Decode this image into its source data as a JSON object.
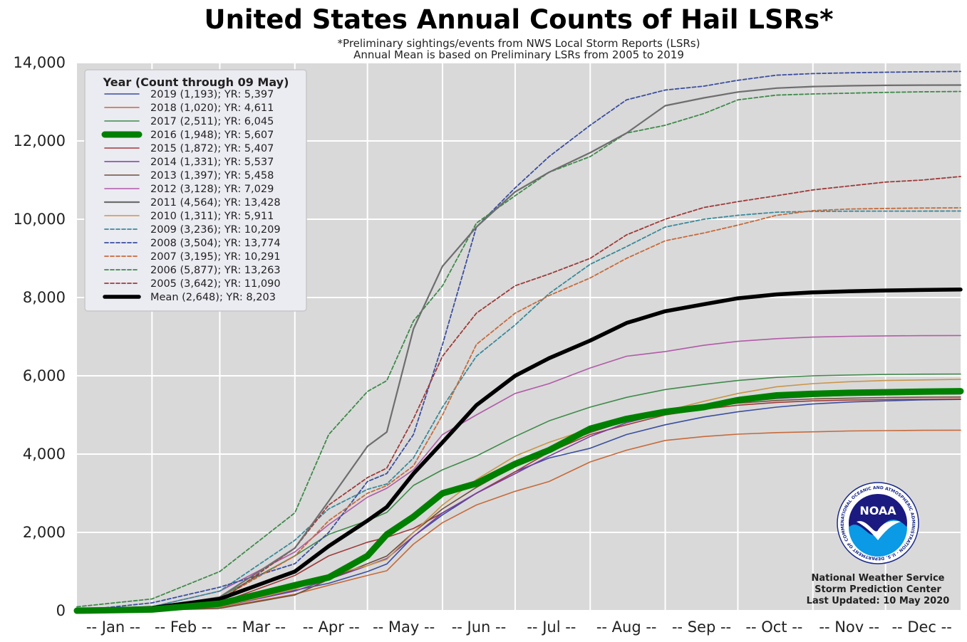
{
  "chart_data": {
    "type": "line",
    "title": "United States Annual Counts of Hail LSRs*",
    "subtitle_lines": [
      "*Preliminary sightings/events from NWS Local Storm Reports (LSRs)",
      "Annual Mean is based on Preliminary LSRs from 2005 to 2019"
    ],
    "xlabel": "",
    "ylabel": "",
    "x_unit": "day of year",
    "xlim": [
      1,
      366
    ],
    "ylim": [
      0,
      14000
    ],
    "yticks": [
      0,
      2000,
      4000,
      6000,
      8000,
      10000,
      12000,
      14000
    ],
    "ytick_labels": [
      "0",
      "2,000",
      "4,000",
      "6,000",
      "8,000",
      "10,000",
      "12,000",
      "14,000"
    ],
    "month_gridlines": [
      32,
      60,
      91,
      121,
      152,
      182,
      213,
      244,
      274,
      305,
      335
    ],
    "month_labels": [
      "-- Jan --",
      "-- Feb --",
      "-- Mar --",
      "-- Apr --",
      "-- May --",
      "-- Jun --",
      "-- Jul --",
      "-- Aug --",
      "-- Sep --",
      "-- Oct --",
      "-- Nov --",
      "-- Dec --"
    ],
    "month_label_days": [
      16,
      45,
      75,
      106,
      136,
      167,
      197,
      228,
      259,
      289,
      320,
      350
    ],
    "grid": true,
    "background": "#d9d9d9",
    "legend": {
      "title": "Year (Count through 09 May)",
      "placement": "top-left"
    },
    "series": [
      {
        "name": "2019 (1,193); YR: 5,397",
        "color": "#3b4ea0",
        "style": "solid",
        "width": 1.6,
        "x": [
          1,
          32,
          60,
          91,
          105,
          121,
          129,
          140,
          152,
          166,
          182,
          196,
          213,
          228,
          244,
          260,
          274,
          290,
          305,
          320,
          335,
          350,
          366
        ],
        "y": [
          0,
          20,
          120,
          520,
          700,
          1000,
          1193,
          1900,
          2450,
          3000,
          3550,
          3900,
          4150,
          4500,
          4750,
          4950,
          5080,
          5200,
          5280,
          5330,
          5360,
          5385,
          5397
        ]
      },
      {
        "name": "2018 (1,020); YR: 4,611",
        "color": "#c76a3b",
        "style": "solid",
        "width": 1.6,
        "x": [
          1,
          32,
          60,
          91,
          105,
          121,
          129,
          140,
          152,
          166,
          182,
          196,
          213,
          228,
          244,
          260,
          274,
          290,
          305,
          320,
          335,
          350,
          366
        ],
        "y": [
          0,
          10,
          80,
          420,
          650,
          900,
          1020,
          1700,
          2250,
          2700,
          3050,
          3300,
          3800,
          4100,
          4350,
          4450,
          4510,
          4550,
          4570,
          4590,
          4600,
          4608,
          4611
        ]
      },
      {
        "name": "2017 (2,511); YR: 6,045",
        "color": "#3f8a4a",
        "style": "solid",
        "width": 1.6,
        "x": [
          1,
          32,
          60,
          91,
          105,
          121,
          129,
          140,
          152,
          166,
          182,
          196,
          213,
          228,
          244,
          260,
          274,
          290,
          305,
          320,
          335,
          350,
          366
        ],
        "y": [
          0,
          60,
          350,
          1400,
          1950,
          2300,
          2511,
          3200,
          3600,
          3950,
          4450,
          4850,
          5200,
          5450,
          5650,
          5780,
          5880,
          5960,
          6000,
          6020,
          6035,
          6042,
          6045
        ]
      },
      {
        "name": "2016 (1,948); YR: 5,607",
        "color": "#008000",
        "style": "solid",
        "width": 9,
        "x": [
          1,
          32,
          60,
          91,
          105,
          121,
          129,
          140,
          152,
          166,
          182,
          196,
          213,
          228,
          244,
          260,
          274,
          290,
          305,
          320,
          335,
          350,
          366
        ],
        "y": [
          0,
          30,
          180,
          650,
          850,
          1400,
          1948,
          2400,
          3000,
          3250,
          3750,
          4100,
          4650,
          4900,
          5080,
          5200,
          5380,
          5500,
          5540,
          5565,
          5580,
          5595,
          5607
        ]
      },
      {
        "name": "2015 (1,872); YR: 5,407",
        "color": "#a03a3a",
        "style": "solid",
        "width": 1.6,
        "x": [
          1,
          32,
          60,
          91,
          105,
          121,
          129,
          140,
          152,
          166,
          182,
          196,
          213,
          228,
          244,
          260,
          274,
          290,
          305,
          320,
          335,
          350,
          366
        ],
        "y": [
          0,
          30,
          200,
          900,
          1400,
          1750,
          1872,
          2100,
          2500,
          3000,
          3550,
          4050,
          4500,
          4750,
          5000,
          5150,
          5250,
          5320,
          5360,
          5380,
          5395,
          5402,
          5407
        ]
      },
      {
        "name": "2014 (1,331); YR: 5,537",
        "color": "#7a3fa0",
        "style": "solid",
        "width": 1.6,
        "x": [
          1,
          32,
          60,
          91,
          105,
          121,
          129,
          140,
          152,
          166,
          182,
          196,
          213,
          228,
          244,
          260,
          274,
          290,
          305,
          320,
          335,
          350,
          366
        ],
        "y": [
          0,
          20,
          100,
          500,
          800,
          1150,
          1331,
          1900,
          2500,
          3000,
          3500,
          3950,
          4450,
          4800,
          5050,
          5200,
          5330,
          5420,
          5470,
          5500,
          5520,
          5530,
          5537
        ]
      },
      {
        "name": "2013 (1,397); YR: 5,458",
        "color": "#6e4f3a",
        "style": "solid",
        "width": 1.6,
        "x": [
          1,
          32,
          60,
          91,
          105,
          121,
          129,
          140,
          152,
          166,
          182,
          196,
          213,
          228,
          244,
          260,
          274,
          290,
          305,
          320,
          335,
          350,
          366
        ],
        "y": [
          0,
          10,
          60,
          400,
          800,
          1200,
          1397,
          2000,
          2600,
          3150,
          3700,
          4150,
          4550,
          4850,
          5050,
          5200,
          5300,
          5370,
          5410,
          5430,
          5445,
          5452,
          5458
        ]
      },
      {
        "name": "2012 (3,128); YR: 7,029",
        "color": "#b15ba8",
        "style": "solid",
        "width": 1.6,
        "x": [
          1,
          32,
          60,
          91,
          105,
          121,
          129,
          140,
          152,
          166,
          182,
          196,
          213,
          228,
          244,
          260,
          274,
          290,
          305,
          320,
          335,
          350,
          366
        ],
        "y": [
          0,
          100,
          500,
          1500,
          2200,
          2900,
          3128,
          3600,
          4500,
          5000,
          5550,
          5800,
          6200,
          6500,
          6620,
          6780,
          6880,
          6950,
          6990,
          7010,
          7020,
          7025,
          7029
        ]
      },
      {
        "name": "2011 (4,564); YR: 13,428",
        "color": "#6e6e6e",
        "style": "solid",
        "width": 2.2,
        "x": [
          1,
          32,
          60,
          91,
          105,
          121,
          129,
          140,
          152,
          166,
          182,
          196,
          213,
          228,
          244,
          260,
          274,
          290,
          305,
          320,
          335,
          350,
          366
        ],
        "y": [
          0,
          60,
          350,
          1600,
          2800,
          4200,
          4564,
          7200,
          8800,
          9800,
          10700,
          11200,
          11700,
          12200,
          12900,
          13100,
          13250,
          13350,
          13390,
          13410,
          13420,
          13425,
          13428
        ]
      },
      {
        "name": "2010 (1,311); YR: 5,911",
        "color": "#c9954a",
        "style": "solid",
        "width": 1.6,
        "x": [
          1,
          32,
          60,
          91,
          105,
          121,
          129,
          140,
          152,
          166,
          182,
          196,
          213,
          228,
          244,
          260,
          274,
          290,
          305,
          320,
          335,
          350,
          366
        ],
        "y": [
          0,
          20,
          100,
          550,
          900,
          1150,
          1311,
          2000,
          2700,
          3350,
          3950,
          4300,
          4650,
          4900,
          5100,
          5350,
          5550,
          5720,
          5800,
          5850,
          5880,
          5895,
          5911
        ]
      },
      {
        "name": "2009 (3,236); YR: 10,209",
        "color": "#3a8a9a",
        "style": "dashed",
        "width": 1.8,
        "x": [
          1,
          32,
          60,
          91,
          105,
          121,
          129,
          140,
          152,
          166,
          182,
          196,
          213,
          228,
          244,
          260,
          274,
          290,
          305,
          320,
          335,
          350,
          366
        ],
        "y": [
          0,
          100,
          500,
          1800,
          2600,
          3100,
          3236,
          3900,
          5200,
          6500,
          7300,
          8100,
          8850,
          9300,
          9800,
          10000,
          10100,
          10180,
          10200,
          10205,
          10207,
          10208,
          10209
        ]
      },
      {
        "name": "2008 (3,504); YR: 13,774",
        "color": "#3b4ea0",
        "style": "dashed",
        "width": 1.8,
        "x": [
          1,
          32,
          60,
          91,
          105,
          121,
          129,
          140,
          152,
          166,
          182,
          196,
          213,
          228,
          244,
          260,
          274,
          290,
          305,
          320,
          335,
          350,
          366
        ],
        "y": [
          0,
          200,
          600,
          1200,
          2000,
          3300,
          3504,
          4500,
          6800,
          9800,
          10800,
          11600,
          12400,
          13050,
          13300,
          13400,
          13550,
          13680,
          13720,
          13740,
          13755,
          13765,
          13774
        ]
      },
      {
        "name": "2007 (3,195); YR: 10,291",
        "color": "#c76a3b",
        "style": "dashed",
        "width": 1.8,
        "x": [
          1,
          32,
          60,
          91,
          105,
          121,
          129,
          140,
          152,
          166,
          182,
          196,
          213,
          228,
          244,
          260,
          274,
          290,
          305,
          320,
          335,
          350,
          366
        ],
        "y": [
          0,
          100,
          300,
          1400,
          2300,
          3000,
          3195,
          3700,
          5000,
          6800,
          7600,
          8050,
          8500,
          9000,
          9450,
          9650,
          9850,
          10100,
          10220,
          10260,
          10275,
          10285,
          10291
        ]
      },
      {
        "name": "2006 (5,877); YR: 13,263",
        "color": "#3f8a4a",
        "style": "dashed",
        "width": 1.8,
        "x": [
          1,
          32,
          60,
          91,
          105,
          121,
          129,
          140,
          152,
          166,
          182,
          196,
          213,
          228,
          244,
          260,
          274,
          290,
          305,
          320,
          335,
          350,
          366
        ],
        "y": [
          100,
          300,
          1000,
          2500,
          4500,
          5600,
          5877,
          7400,
          8300,
          9900,
          10600,
          11200,
          11600,
          12200,
          12400,
          12700,
          13050,
          13170,
          13200,
          13220,
          13240,
          13255,
          13263
        ]
      },
      {
        "name": "2005 (3,642); YR: 11,090",
        "color": "#a03a3a",
        "style": "dashed",
        "width": 1.8,
        "x": [
          1,
          32,
          60,
          91,
          105,
          121,
          129,
          140,
          152,
          166,
          182,
          196,
          213,
          228,
          244,
          260,
          274,
          290,
          305,
          320,
          335,
          350,
          366
        ],
        "y": [
          0,
          30,
          250,
          1600,
          2700,
          3400,
          3642,
          4900,
          6500,
          7600,
          8300,
          8600,
          9000,
          9600,
          10000,
          10300,
          10450,
          10600,
          10750,
          10850,
          10950,
          11000,
          11090
        ]
      },
      {
        "name": "Mean (2,648); YR: 8,203",
        "color": "#000000",
        "style": "solid",
        "width": 5.5,
        "x": [
          1,
          32,
          60,
          91,
          105,
          121,
          129,
          140,
          152,
          166,
          182,
          196,
          213,
          228,
          244,
          260,
          274,
          290,
          305,
          320,
          335,
          350,
          366
        ],
        "y": [
          0,
          70,
          300,
          1000,
          1650,
          2300,
          2648,
          3500,
          4300,
          5250,
          6000,
          6450,
          6900,
          7350,
          7650,
          7830,
          7980,
          8080,
          8130,
          8160,
          8180,
          8192,
          8203
        ]
      }
    ]
  },
  "logo": {
    "name": "NOAA",
    "ring_text": "NATIONAL OCEANIC AND ATMOSPHERIC ADMINISTRATION · U.S. DEPARTMENT OF COMMERCE"
  },
  "credits": {
    "line1": "National Weather Service",
    "line2": "Storm Prediction Center",
    "line3": "Last Updated: 10 May 2020"
  }
}
